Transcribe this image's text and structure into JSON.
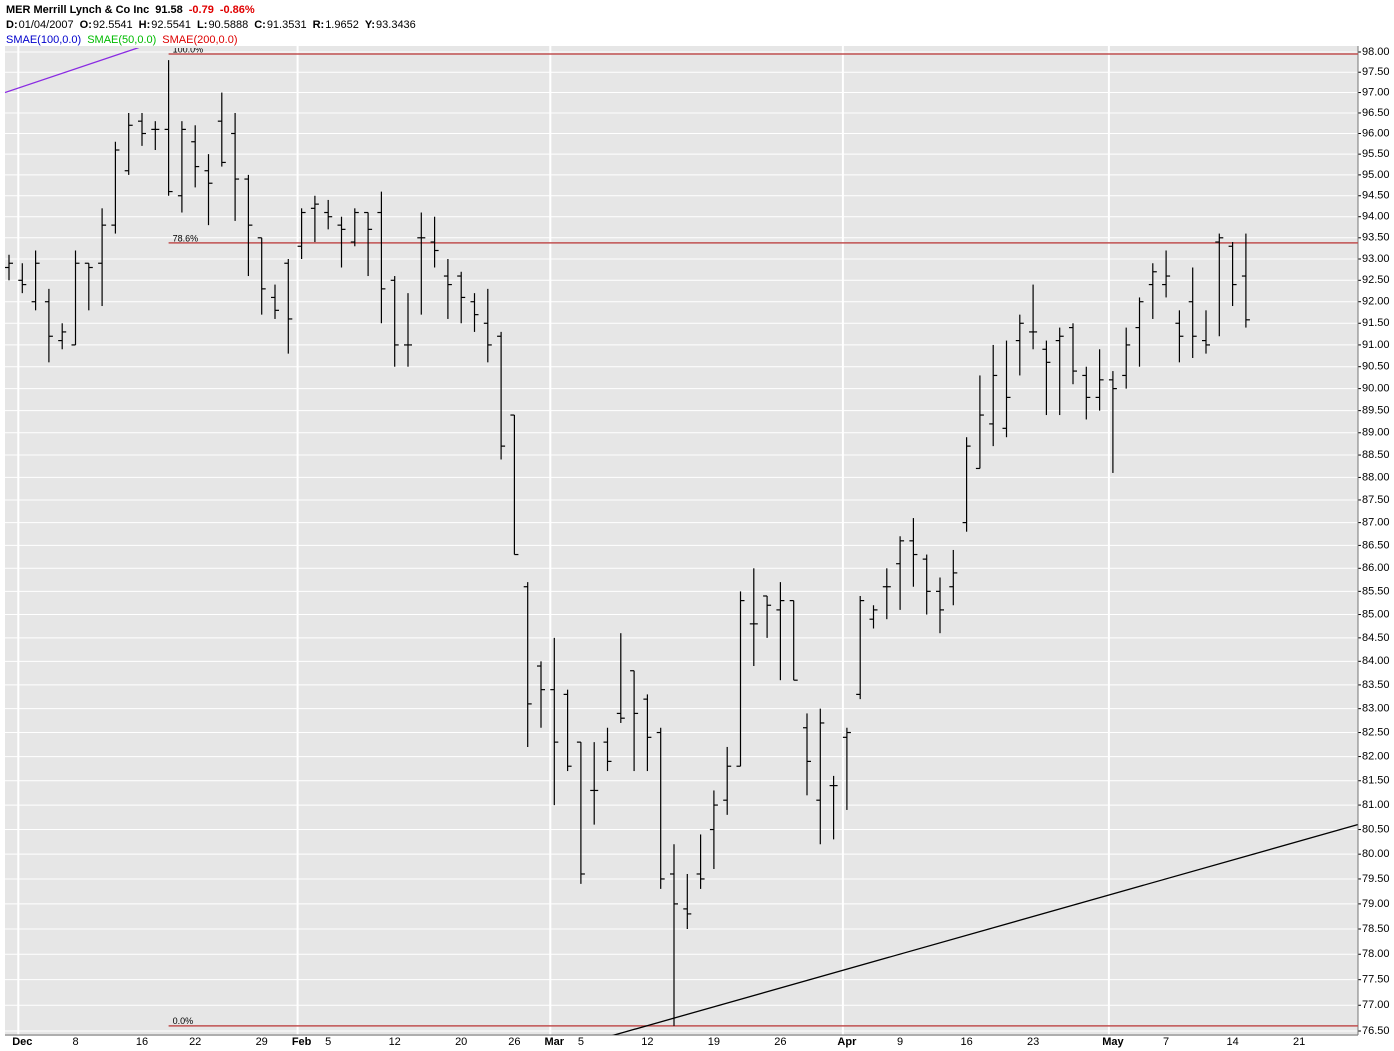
{
  "header": {
    "symbol_name": "MER Merrill Lynch & Co Inc",
    "last": "91.58",
    "change": "-0.79",
    "change_pct": "-0.86%",
    "fields": [
      {
        "label": "D:",
        "value": "01/04/2007"
      },
      {
        "label": "O:",
        "value": "92.5541"
      },
      {
        "label": "H:",
        "value": "92.5541"
      },
      {
        "label": "L:",
        "value": "90.5888"
      },
      {
        "label": "C:",
        "value": "91.3531"
      },
      {
        "label": "R:",
        "value": "1.9652"
      },
      {
        "label": "Y:",
        "value": "93.3436"
      }
    ],
    "indicators": [
      {
        "label": "SMAE(100,0.0)",
        "color": "#0000cc"
      },
      {
        "label": "SMAE(50,0.0)",
        "color": "#00bb00"
      },
      {
        "label": "SMAE(200,0.0)",
        "color": "#dd0000"
      }
    ]
  },
  "chart_data": {
    "type": "ohlc",
    "log_scale": true,
    "grid": true,
    "color": "#000000",
    "categories": [
      null,
      "Dec",
      null,
      null,
      null,
      "8",
      null,
      null,
      null,
      null,
      "16",
      null,
      null,
      null,
      "22",
      null,
      null,
      null,
      null,
      "29",
      null,
      null,
      "Feb",
      null,
      "5",
      null,
      null,
      null,
      null,
      "12",
      null,
      null,
      null,
      null,
      "20",
      null,
      null,
      null,
      "26",
      null,
      null,
      "Mar",
      null,
      "5",
      null,
      null,
      null,
      null,
      "12",
      null,
      null,
      null,
      null,
      "19",
      null,
      null,
      null,
      null,
      "26",
      null,
      null,
      null,
      null,
      "Apr",
      null,
      null,
      null,
      "9",
      null,
      null,
      null,
      null,
      "16",
      null,
      null,
      null,
      null,
      "23",
      null,
      null,
      null,
      null,
      null,
      "May",
      null,
      null,
      null,
      "7",
      null,
      null,
      null,
      null,
      "14",
      null,
      null,
      null,
      null,
      "21"
    ],
    "open": [
      92.8,
      92.5,
      92.0,
      92.0,
      91.1,
      91.0,
      92.9,
      92.9,
      93.8,
      95.1,
      96.3,
      96.1,
      96.1,
      94.5,
      95.8,
      95.1,
      96.3,
      96.0,
      94.9,
      93.5,
      92.1,
      92.9,
      93.3,
      94.2,
      94.1,
      93.8,
      93.4,
      94.1,
      94.1,
      92.5,
      91.0,
      93.5,
      93.4,
      92.6,
      92.6,
      92.0,
      91.5,
      91.2,
      89.4,
      85.6,
      83.9,
      83.4,
      83.3,
      82.3,
      81.3,
      82.3,
      82.9,
      83.8,
      83.2,
      82.5,
      79.6,
      78.9,
      79.6,
      80.5,
      81.1,
      81.8,
      84.8,
      85.4,
      85.1,
      85.3,
      82.6,
      81.1,
      81.4,
      82.4,
      83.3,
      84.9,
      85.6,
      86.1,
      86.6,
      86.2,
      85.5,
      85.6,
      87.0,
      88.2,
      89.2,
      89.1,
      91.1,
      91.3,
      90.9,
      91.1,
      91.4,
      90.3,
      89.8,
      90.2,
      90.3,
      91.4,
      92.4,
      92.4,
      91.5,
      92.0,
      91.1,
      93.4,
      93.3,
      92.6,
      null,
      null,
      null,
      null
    ],
    "high": [
      93.1,
      92.9,
      93.2,
      92.3,
      91.5,
      93.2,
      92.9,
      94.2,
      95.8,
      96.5,
      96.5,
      96.3,
      97.8,
      96.3,
      96.2,
      95.5,
      97.0,
      96.5,
      95.0,
      93.5,
      92.4,
      93.0,
      94.2,
      94.5,
      94.4,
      94.0,
      94.2,
      94.1,
      94.6,
      92.6,
      92.2,
      94.1,
      94.0,
      93.0,
      92.7,
      92.2,
      92.3,
      91.3,
      89.4,
      85.7,
      84.0,
      84.5,
      83.4,
      82.3,
      82.3,
      82.6,
      84.6,
      83.8,
      83.3,
      82.6,
      80.2,
      79.6,
      80.4,
      81.3,
      82.2,
      85.5,
      86.0,
      85.4,
      85.7,
      85.3,
      82.9,
      83.0,
      81.6,
      82.6,
      85.4,
      85.2,
      86.0,
      86.7,
      87.1,
      86.3,
      85.8,
      86.4,
      88.9,
      90.3,
      91.0,
      91.1,
      91.7,
      92.4,
      91.1,
      91.4,
      91.5,
      90.5,
      90.9,
      90.4,
      91.4,
      92.1,
      92.9,
      93.2,
      91.8,
      92.8,
      91.8,
      93.6,
      93.4,
      93.6,
      null,
      null,
      null,
      null
    ],
    "low": [
      92.5,
      92.2,
      91.8,
      90.6,
      90.9,
      91.0,
      91.8,
      91.9,
      93.6,
      95.0,
      95.7,
      95.6,
      94.5,
      94.1,
      94.7,
      93.8,
      95.2,
      93.9,
      92.6,
      91.7,
      91.6,
      90.8,
      93.0,
      93.4,
      93.7,
      92.8,
      93.3,
      92.6,
      91.5,
      90.5,
      90.5,
      91.7,
      92.8,
      91.6,
      91.5,
      91.3,
      90.6,
      88.4,
      86.3,
      82.2,
      82.6,
      81.0,
      81.7,
      79.4,
      80.6,
      81.7,
      82.7,
      81.7,
      81.7,
      79.3,
      76.6,
      78.5,
      79.3,
      79.7,
      80.8,
      81.8,
      83.9,
      84.5,
      83.6,
      83.6,
      81.2,
      80.2,
      80.3,
      80.9,
      83.2,
      84.7,
      84.9,
      85.1,
      85.6,
      85.0,
      84.6,
      85.2,
      86.8,
      88.2,
      88.7,
      88.9,
      90.3,
      90.9,
      89.4,
      89.4,
      90.1,
      89.3,
      89.5,
      88.1,
      90.0,
      90.5,
      91.6,
      92.1,
      90.6,
      90.7,
      90.8,
      91.2,
      91.9,
      91.4,
      null,
      null,
      null,
      null
    ],
    "close": [
      92.9,
      92.4,
      92.9,
      91.2,
      91.3,
      92.9,
      92.8,
      93.8,
      95.6,
      96.2,
      96.0,
      96.1,
      94.6,
      96.1,
      95.2,
      94.8,
      95.3,
      94.9,
      93.8,
      92.3,
      91.8,
      91.6,
      94.1,
      94.3,
      94.0,
      93.7,
      94.1,
      93.7,
      92.3,
      91.0,
      91.0,
      93.5,
      93.2,
      92.4,
      92.1,
      91.7,
      91.0,
      88.7,
      86.3,
      83.1,
      83.4,
      82.3,
      81.8,
      79.6,
      81.3,
      81.9,
      82.8,
      82.9,
      82.4,
      79.5,
      79.0,
      78.8,
      79.5,
      81.0,
      81.8,
      85.3,
      84.8,
      85.2,
      85.3,
      83.6,
      81.9,
      82.7,
      81.4,
      82.5,
      85.3,
      85.1,
      85.6,
      86.6,
      86.3,
      85.5,
      85.1,
      85.9,
      88.7,
      89.4,
      90.3,
      89.8,
      91.5,
      91.3,
      90.6,
      91.2,
      90.4,
      89.8,
      90.2,
      90.0,
      91.0,
      92.0,
      92.7,
      92.6,
      91.2,
      91.2,
      91.0,
      93.5,
      92.4,
      91.58,
      null,
      null,
      null,
      null
    ],
    "ylim": [
      76.5,
      98
    ],
    "yticks": [
      {
        "value": 76.5,
        "label": "76.50"
      },
      {
        "value": 77,
        "label": "77.00"
      },
      {
        "value": 77.5,
        "label": "77.50"
      },
      {
        "value": 78,
        "label": "78.00"
      },
      {
        "value": 78.5,
        "label": "78.50"
      },
      {
        "value": 79,
        "label": "79.00"
      },
      {
        "value": 79.5,
        "label": "79.50"
      },
      {
        "value": 80,
        "label": "80.00"
      },
      {
        "value": 80.5,
        "label": "80.50"
      },
      {
        "value": 81,
        "label": "81.00"
      },
      {
        "value": 81.5,
        "label": "81.50"
      },
      {
        "value": 82,
        "label": "82.00"
      },
      {
        "value": 82.5,
        "label": "82.50"
      },
      {
        "value": 83,
        "label": "83.00"
      },
      {
        "value": 83.5,
        "label": "83.50"
      },
      {
        "value": 84,
        "label": "84.00"
      },
      {
        "value": 84.5,
        "label": "84.50"
      },
      {
        "value": 85,
        "label": "85.00"
      },
      {
        "value": 85.5,
        "label": "85.50"
      },
      {
        "value": 86,
        "label": "86.00"
      },
      {
        "value": 86.5,
        "label": "86.50"
      },
      {
        "value": 87,
        "label": "87.00"
      },
      {
        "value": 87.5,
        "label": "87.50"
      },
      {
        "value": 88,
        "label": "88.00"
      },
      {
        "value": 88.5,
        "label": "88.50"
      },
      {
        "value": 89,
        "label": "89.00"
      },
      {
        "value": 89.5,
        "label": "89.50"
      },
      {
        "value": 90,
        "label": "90.00"
      },
      {
        "value": 90.5,
        "label": "90.50"
      },
      {
        "value": 91,
        "label": "91.00"
      },
      {
        "value": 91.5,
        "label": "91.50"
      },
      {
        "value": 92,
        "label": "92.00"
      },
      {
        "value": 92.5,
        "label": "92.50"
      },
      {
        "value": 93,
        "label": "93.00"
      },
      {
        "value": 93.5,
        "label": "93.50"
      },
      {
        "value": 94,
        "label": "94.00"
      },
      {
        "value": 94.5,
        "label": "94.50"
      },
      {
        "value": 95,
        "label": "95.00"
      },
      {
        "value": 95.5,
        "label": "95.50"
      },
      {
        "value": 96,
        "label": "96.00"
      },
      {
        "value": 96.5,
        "label": "96.50"
      },
      {
        "value": 97,
        "label": "97.00"
      },
      {
        "value": 97.5,
        "label": "97.50"
      },
      {
        "value": 98,
        "label": "98.00"
      }
    ],
    "fibonacci": {
      "start": 12,
      "color": "#c05050",
      "levels": [
        {
          "label": "100.0%",
          "value": 97.95
        },
        {
          "label": "78.6%",
          "value": 93.38
        },
        {
          "label": "0.0%",
          "value": 76.6
        }
      ]
    },
    "trend_lines": [
      {
        "color": "#8a2be2",
        "points": [
          [
            -0.3,
            97.0
          ],
          [
            9.85,
            98.12
          ]
        ]
      },
      {
        "color": "#000000",
        "points": [
          [
            45.2,
            76.4
          ],
          [
            101.4,
            80.6
          ]
        ]
      }
    ]
  }
}
